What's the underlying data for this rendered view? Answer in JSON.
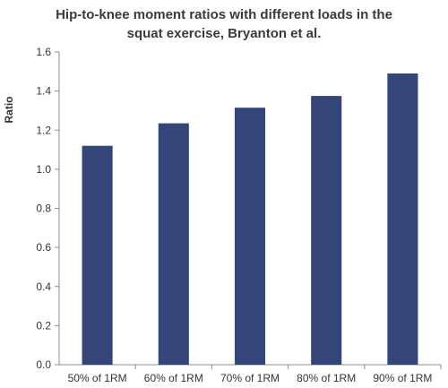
{
  "chart_data": {
    "type": "bar",
    "title_lines": [
      "Hip-to-knee moment ratios with different loads in the",
      "squat exercise, Bryanton et al."
    ],
    "xlabel": "",
    "ylabel": "Ratio",
    "categories": [
      "50% of 1RM",
      "60% of 1RM",
      "70% of 1RM",
      "80% of 1RM",
      "90% of 1RM"
    ],
    "values": [
      1.12,
      1.235,
      1.315,
      1.375,
      1.49
    ],
    "ylim": [
      0,
      1.6
    ],
    "yticks": [
      "0.0",
      "0.2",
      "0.4",
      "0.6",
      "0.8",
      "1.0",
      "1.2",
      "1.4",
      "1.6"
    ],
    "grid": false,
    "legend": "none",
    "bar_color": "#34457a",
    "axis_color": "#8c8c8c"
  }
}
